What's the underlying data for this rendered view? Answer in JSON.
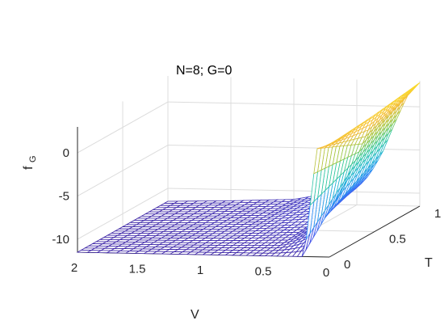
{
  "chart_data": {
    "type": "surface",
    "annotation": "N=8; G=0",
    "xlabel": "V",
    "ylabel": "T",
    "zlabel": "f",
    "zlabel_sub": "G",
    "xlim": [
      0,
      2
    ],
    "ylim": [
      0,
      1
    ],
    "zlim": [
      -11.5,
      3
    ],
    "x_ticks": [
      "0",
      "0.5",
      "1",
      "1.5",
      "2"
    ],
    "y_ticks": [
      "0",
      "0.5",
      "1"
    ],
    "z_ticks": [
      "-10",
      "-5",
      "0"
    ],
    "grid": true,
    "colormap": [
      "#3e26a8",
      "#4356f0",
      "#2f8ff4",
      "#1cb4d3",
      "#30c79a",
      "#9cc63d",
      "#f4ba38",
      "#fadf2a"
    ],
    "surface_samples": {
      "V": [
        0,
        0.1,
        0.2,
        0.3,
        0.4,
        0.5,
        1.0,
        1.5,
        2.0
      ],
      "T": [
        0,
        0.5,
        1
      ],
      "f": [
        [
          1.5,
          1.0,
          -11.5,
          -11.5,
          -11.5,
          -11.5,
          -11.5,
          -11.5,
          -11.5
        ],
        [
          2.0,
          -1.5,
          -5.0,
          -8.5,
          -10.0,
          -10.8,
          -11.2,
          -11.4,
          -11.5
        ],
        [
          2.8,
          1.2,
          -2.0,
          -5.5,
          -8.0,
          -9.6,
          -11.0,
          -11.3,
          -11.5
        ]
      ]
    }
  }
}
